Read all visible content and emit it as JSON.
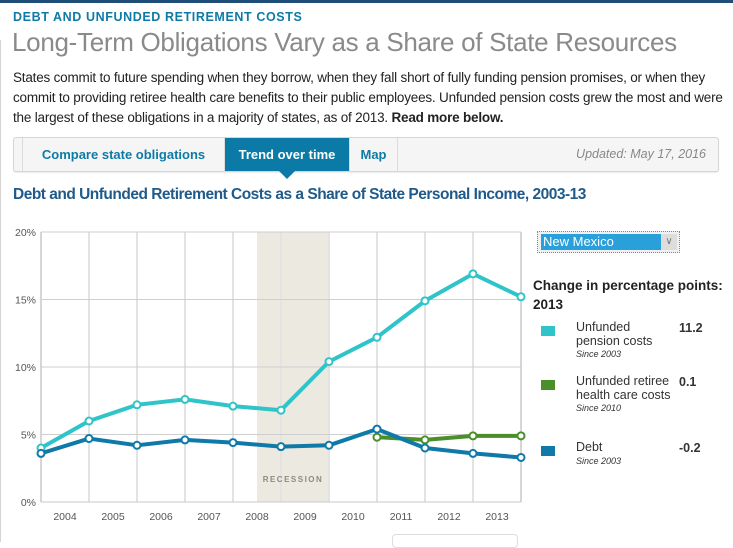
{
  "header": {
    "kicker": "DEBT AND UNFUNDED RETIREMENT COSTS",
    "title": "Long-Term Obligations Vary as a Share of State Resources",
    "intro": "States commit to future spending when they borrow, when they fall short of fully funding pension promises, or when they commit to providing retiree health care benefits to their public employees. Unfunded pension costs grew the most and were the largest of these obligations in a majority of states, as of 2013. ",
    "intro_link": "Read more below."
  },
  "tabs": [
    {
      "label": "Compare state obligations",
      "active": false
    },
    {
      "label": "Trend over time",
      "active": true
    },
    {
      "label": "Map",
      "active": false
    }
  ],
  "updated": "Updated: May 17, 2016",
  "state_select": {
    "value": "New Mexico",
    "icon": "chevron-down-icon"
  },
  "legend": {
    "title": "Change in percentage points: 2013",
    "items": [
      {
        "label": "Unfunded pension costs",
        "since": "Since 2003",
        "value": "11.2",
        "color": "#2ec4c9"
      },
      {
        "label": "Unfunded retiree health care costs",
        "since": "Since 2010",
        "value": "0.1",
        "color": "#4a8f2a"
      },
      {
        "label": "Debt",
        "since": "Since 2003",
        "value": "-0.2",
        "color": "#0f79a8"
      }
    ]
  },
  "chart_data": {
    "type": "line",
    "title": "Debt and Unfunded Retirement Costs as a Share of State Personal Income, 2003-13",
    "xlabel": "",
    "ylabel": "",
    "x": [
      2003,
      2004,
      2005,
      2006,
      2007,
      2008,
      2009,
      2010,
      2011,
      2012,
      2013
    ],
    "x_tick_labels": [
      "2004",
      "2005",
      "2006",
      "2007",
      "2008",
      "2009",
      "2010",
      "2011",
      "2012",
      "2013"
    ],
    "y_tick_labels": [
      "0%",
      "5%",
      "10%",
      "15%",
      "20%"
    ],
    "y_ticks": [
      0,
      5,
      10,
      15,
      20
    ],
    "ylim": [
      0,
      20
    ],
    "grid": true,
    "shaded_region": {
      "label": "RECESSION",
      "from": 2007.5,
      "to": 2009.0,
      "color": "#ece9e1"
    },
    "series": [
      {
        "name": "Unfunded pension costs",
        "color": "#2ec4c9",
        "values": [
          4.0,
          6.0,
          7.2,
          7.6,
          7.1,
          6.8,
          10.4,
          12.2,
          14.9,
          16.9,
          15.2
        ]
      },
      {
        "name": "Unfunded retiree health care costs",
        "color": "#4a8f2a",
        "values": [
          null,
          null,
          null,
          null,
          null,
          null,
          null,
          4.8,
          4.6,
          4.9,
          4.9
        ]
      },
      {
        "name": "Debt",
        "color": "#0f79a8",
        "values": [
          3.6,
          4.7,
          4.2,
          4.6,
          4.4,
          4.1,
          4.2,
          5.4,
          4.0,
          3.6,
          3.3
        ]
      }
    ]
  }
}
